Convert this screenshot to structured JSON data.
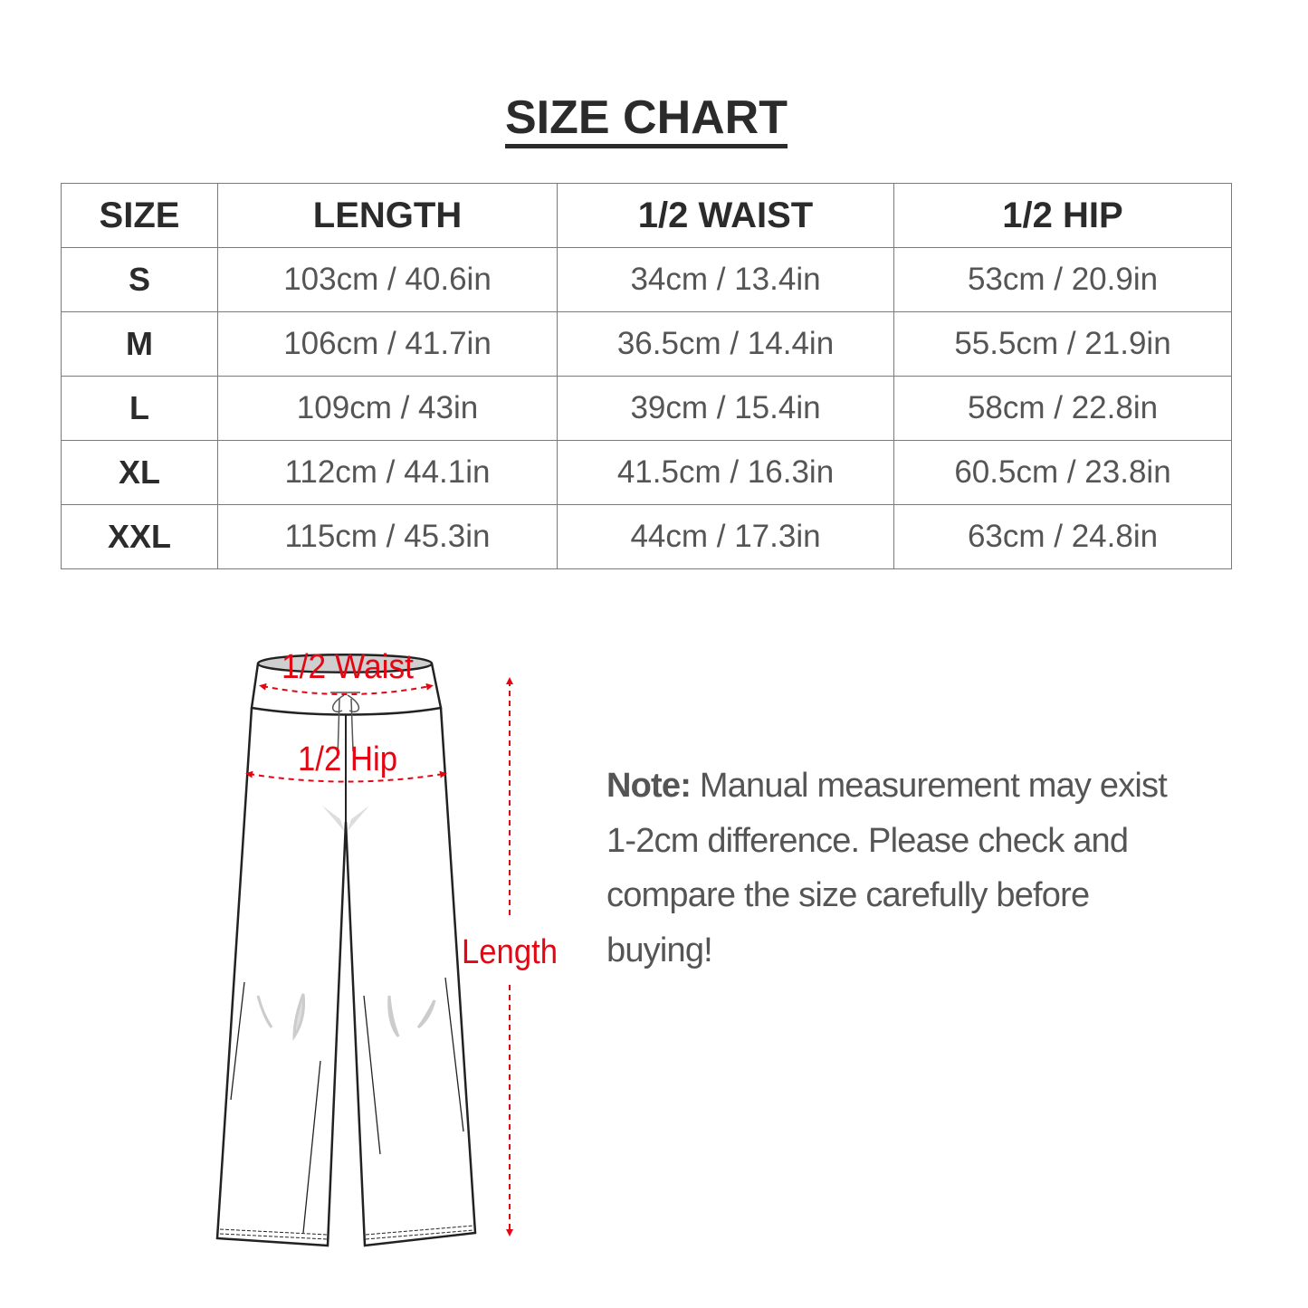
{
  "title": "SIZE CHART",
  "table": {
    "headers": [
      "SIZE",
      "LENGTH",
      "1/2 WAIST",
      "1/2 HIP"
    ],
    "rows": [
      [
        "S",
        "103cm / 40.6in",
        "34cm / 13.4in",
        "53cm / 20.9in"
      ],
      [
        "M",
        "106cm / 41.7in",
        "36.5cm / 14.4in",
        "55.5cm / 21.9in"
      ],
      [
        "L",
        "109cm / 43in",
        "39cm / 15.4in",
        "58cm / 22.8in"
      ],
      [
        "XL",
        "112cm / 44.1in",
        "41.5cm / 16.3in",
        "60.5cm / 23.8in"
      ],
      [
        "XXL",
        "115cm / 45.3in",
        "44cm / 17.3in",
        "63cm / 24.8in"
      ]
    ]
  },
  "diagram": {
    "waist_label": "1/2 Waist",
    "hip_label": "1/2 Hip",
    "length_label": "Length",
    "accent_color": "#e30613"
  },
  "note": {
    "label": "Note:",
    "text": " Manual measurement may exist 1-2cm difference. Please check and compare the size carefully before buying!"
  }
}
